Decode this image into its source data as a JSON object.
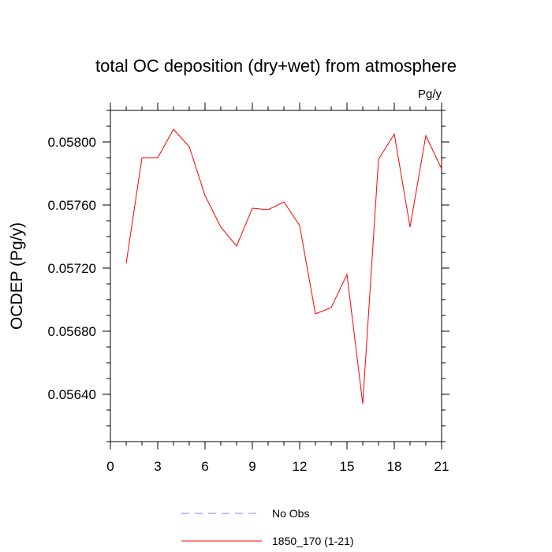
{
  "chart_data": {
    "type": "line",
    "title": "total OC deposition (dry+wet) from atmosphere",
    "units": "Pg/y",
    "ylabel": "OCDEP  (Pg/y)",
    "xlabel": "",
    "xlim": [
      0,
      21
    ],
    "ylim": [
      0.0561,
      0.0582
    ],
    "x_ticks": [
      0,
      3,
      6,
      9,
      12,
      15,
      18,
      21
    ],
    "x_tick_labels": [
      "0",
      "3",
      "6",
      "9",
      "12",
      "15",
      "18",
      "21"
    ],
    "y_ticks": [
      0.0564,
      0.0568,
      0.0572,
      0.0576,
      0.058
    ],
    "y_tick_labels": [
      "0.05640",
      "0.05680",
      "0.05720",
      "0.05760",
      "0.05800"
    ],
    "grid": false,
    "legend_position": "bottom",
    "series": [
      {
        "name": "1850_170 (1-21)",
        "color": "#ff0000",
        "dash": "solid",
        "x": [
          1,
          2,
          3,
          4,
          5,
          6,
          7,
          8,
          9,
          10,
          11,
          12,
          13,
          14,
          15,
          16,
          17,
          18,
          19,
          20,
          21
        ],
        "values": [
          0.05723,
          0.0579,
          0.0579,
          0.05808,
          0.05797,
          0.05766,
          0.05746,
          0.05734,
          0.05758,
          0.05757,
          0.05762,
          0.05747,
          0.05691,
          0.05695,
          0.05716,
          0.05634,
          0.05789,
          0.05805,
          0.05746,
          0.05804,
          0.05783
        ]
      }
    ],
    "legend": [
      {
        "label": "No Obs",
        "color": "#8080ff",
        "dash": "dashed"
      },
      {
        "label": "1850_170 (1-21)",
        "color": "#ff0000",
        "dash": "solid"
      }
    ]
  }
}
